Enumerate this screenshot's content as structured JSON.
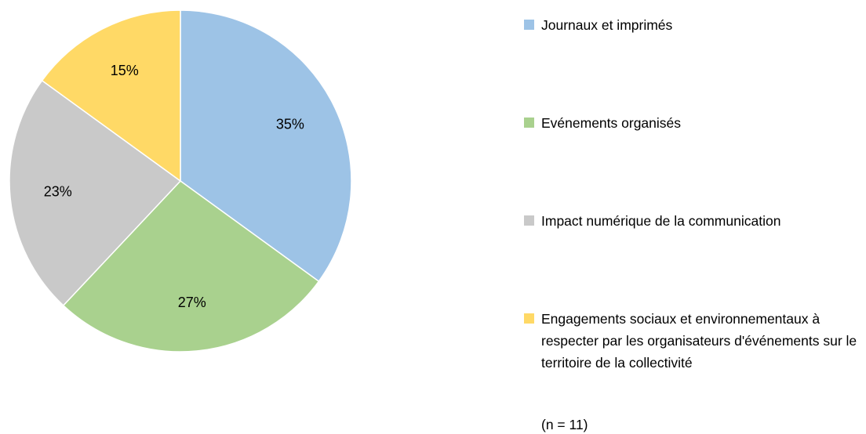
{
  "chart_data": {
    "type": "pie",
    "categories": [
      "Journaux et imprimés",
      "Evénements organisés",
      "Impact numérique de la communication",
      "Engagements sociaux et environnementaux à respecter par les organisateurs d'événements sur le territoire de la collectivité"
    ],
    "values": [
      35,
      27,
      23,
      15
    ],
    "value_labels": [
      "35%",
      "27%",
      "23%",
      "15%"
    ],
    "colors": [
      "#9dc3e6",
      "#a9d18e",
      "#c9c9c9",
      "#ffd966"
    ],
    "legend": "right",
    "annotation": "(n = 11)"
  }
}
